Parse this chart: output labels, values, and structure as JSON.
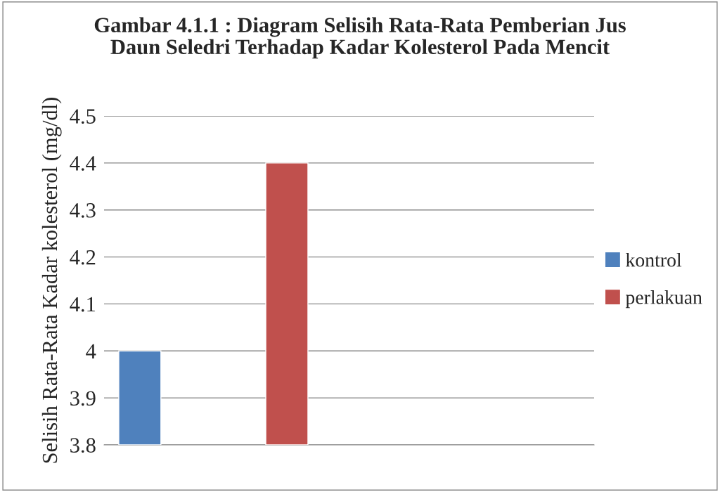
{
  "chart_data": {
    "type": "bar",
    "title": "Gambar 4.1.1 : Diagram Selisih Rata-Rata Pemberian Jus\nDaun Seledri Terhadap Kadar Kolesterol Pada Mencit",
    "ylabel": "Selisih Rata-Rata Kadar kolesterol (mg/dl)",
    "categories": [
      null
    ],
    "series": [
      {
        "name": "kontrol",
        "color": "#4f81bd",
        "values": [
          4.0
        ]
      },
      {
        "name": "perlakuan",
        "color": "#c0504d",
        "values": [
          4.4
        ]
      }
    ],
    "ylim": [
      3.8,
      4.5
    ],
    "yticks": [
      {
        "value": 3.8,
        "label": "3.8"
      },
      {
        "value": 3.9,
        "label": "3.9"
      },
      {
        "value": 4.0,
        "label": "4"
      },
      {
        "value": 4.1,
        "label": "4.1"
      },
      {
        "value": 4.2,
        "label": "4.2"
      },
      {
        "value": 4.3,
        "label": "4.3"
      },
      {
        "value": 4.4,
        "label": "4.4"
      },
      {
        "value": 4.5,
        "label": "4.5"
      }
    ],
    "grid": "y",
    "legend": "right"
  }
}
